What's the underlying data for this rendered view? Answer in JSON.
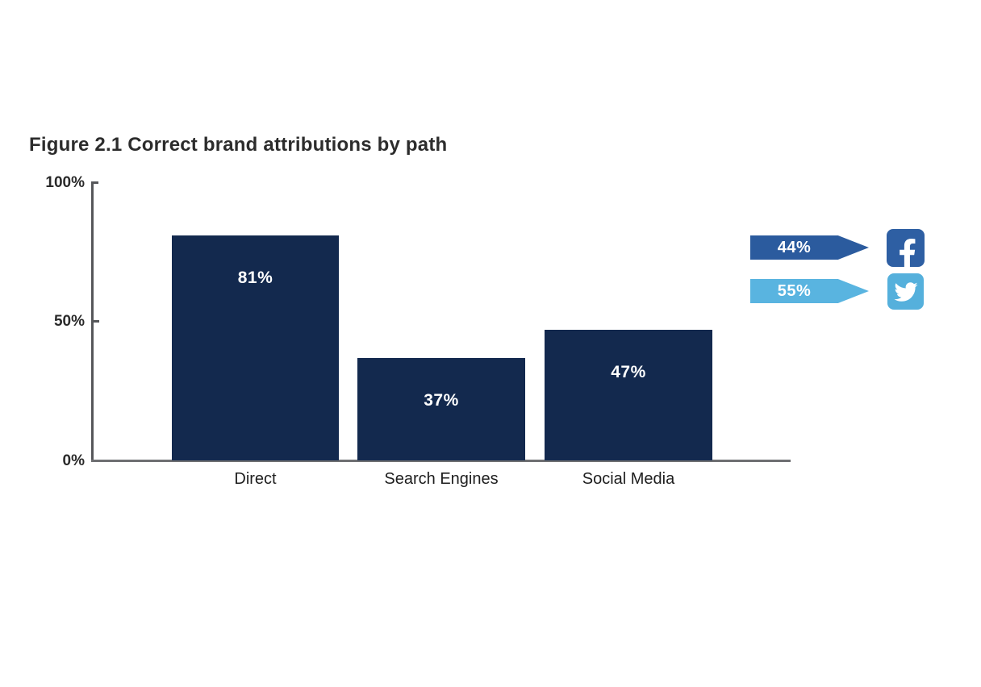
{
  "title": "Figure 2.1 Correct brand attributions by path",
  "y_axis": {
    "ticks": {
      "top": "100%",
      "mid": "50%",
      "bottom": "0%"
    }
  },
  "chart_data": {
    "type": "bar",
    "title": "Figure 2.1 Correct brand attributions by path",
    "categories": [
      "Direct",
      "Search Engines",
      "Social Media"
    ],
    "values": [
      81,
      37,
      47
    ],
    "value_labels": [
      "81%",
      "37%",
      "47%"
    ],
    "xlabel": "",
    "ylabel": "",
    "ylim": [
      0,
      100
    ],
    "y_tick_labels": [
      "0%",
      "50%",
      "100%"
    ],
    "grid": false,
    "legend_position": "right",
    "bar_color": "#13294e"
  },
  "legend": {
    "items": [
      {
        "label": "44%",
        "platform": "Facebook",
        "icon": "facebook-icon",
        "arrow_color": "#2b5b9e",
        "icon_color": "#2e5fa3"
      },
      {
        "label": "55%",
        "platform": "Twitter",
        "icon": "twitter-icon",
        "arrow_color": "#59b4e0",
        "icon_color": "#55b0dc"
      }
    ]
  },
  "colors": {
    "bar": "#13294e",
    "facebook_blue": "#2b5b9e",
    "twitter_blue": "#59b4e0",
    "axis_gray": "#6e6f72",
    "text_dark": "#2c2c2c",
    "bar_label_white": "#ffffff"
  }
}
